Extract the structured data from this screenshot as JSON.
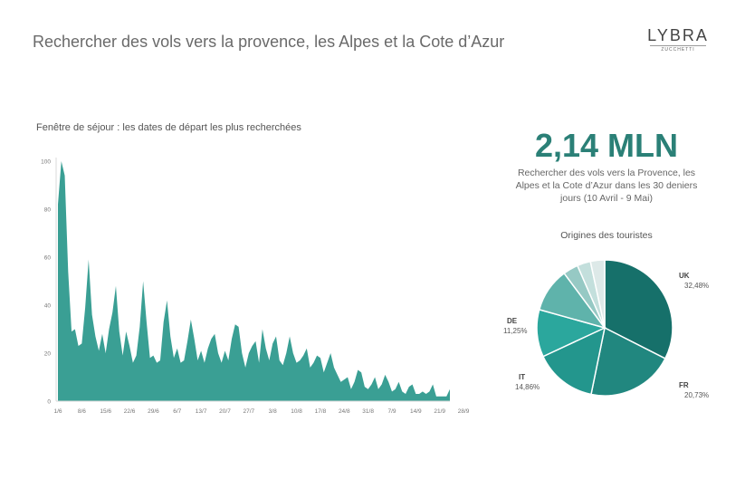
{
  "header": {
    "title": "Rechercher des vols vers la provence, les Alpes et la Cote d’Azur",
    "logo_main": "LYBRA",
    "logo_sub": "ZUCCHETTI"
  },
  "stat": {
    "value": "2,14 MLN",
    "desc_lines": [
      "Rechercher des vols vers la Provence, les",
      "Alpes et la Cote d’Azur dans les 30 deniers",
      "jours (10 Avril - 9 Mai)"
    ]
  },
  "colors": {
    "area": "#3a9f94",
    "pie": [
      "#16706a",
      "#21877f",
      "#23968d",
      "#2ba79d",
      "#5fb3ab",
      "#96c9c4",
      "#c3dfdc",
      "#dde9e8"
    ]
  },
  "chart_data": [
    {
      "type": "area",
      "title": "Fenêtre de séjour : les dates de départ les plus recherchées",
      "ylim": [
        0,
        100
      ],
      "yticks": [
        0,
        20,
        40,
        60,
        80,
        100
      ],
      "xticks": [
        "1/6",
        "8/6",
        "15/6",
        "22/6",
        "29/6",
        "6/7",
        "13/7",
        "20/7",
        "27/7",
        "3/8",
        "10/8",
        "17/8",
        "24/8",
        "31/8",
        "7/9",
        "14/9",
        "21/9",
        "28/9"
      ],
      "values": [
        82,
        100,
        94,
        54,
        29,
        30,
        23,
        24,
        39,
        59,
        36,
        27,
        21,
        28,
        20,
        30,
        37,
        48,
        29,
        19,
        29,
        23,
        16,
        19,
        31,
        50,
        33,
        18,
        19,
        16,
        17,
        33,
        42,
        27,
        18,
        22,
        16,
        17,
        25,
        34,
        26,
        17,
        21,
        16,
        22,
        26,
        28,
        20,
        16,
        21,
        17,
        26,
        32,
        31,
        20,
        14,
        20,
        23,
        25,
        16,
        30,
        22,
        17,
        24,
        27,
        17,
        15,
        20,
        27,
        20,
        16,
        17,
        19,
        22,
        14,
        16,
        19,
        18,
        12,
        16,
        20,
        14,
        11,
        8,
        9,
        10,
        5,
        8,
        13,
        12,
        6,
        5,
        7,
        10,
        5,
        7,
        11,
        8,
        4,
        5,
        8,
        4,
        3,
        6,
        7,
        3,
        3,
        4,
        3,
        4,
        7,
        2,
        2,
        2,
        2,
        5
      ]
    },
    {
      "type": "pie",
      "title": "Origines des touristes",
      "slices": [
        {
          "label": "UK",
          "value_label": "32,48%",
          "value": 32.48
        },
        {
          "label": "FR",
          "value_label": "20,73%",
          "value": 20.73
        },
        {
          "label": "IT",
          "value_label": "14,86%",
          "value": 14.86
        },
        {
          "label": "DE",
          "value_label": "11,25%",
          "value": 11.25
        },
        {
          "value": 10.5
        },
        {
          "value": 3.6
        },
        {
          "value": 3.2
        },
        {
          "value": 3.38
        }
      ]
    }
  ]
}
